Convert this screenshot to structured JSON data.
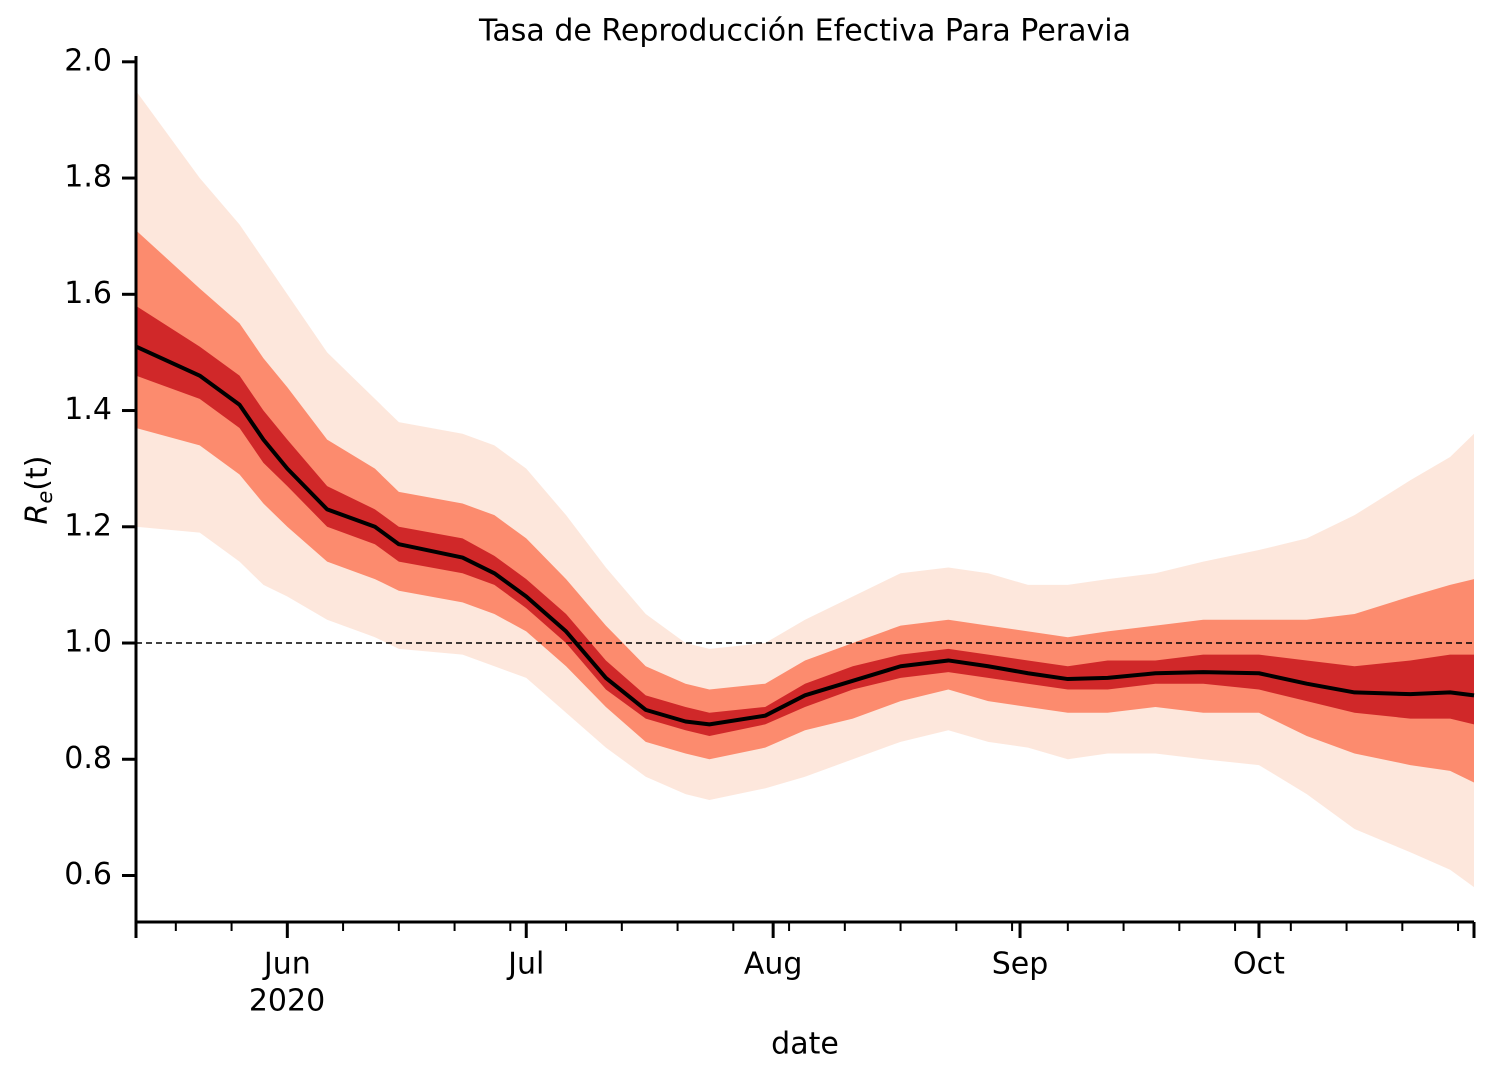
{
  "chart_data": {
    "type": "fan",
    "title": "Tasa de Reproducción Efectiva Para Peravia",
    "xlabel": "date",
    "x_year_label": "2020",
    "ylabel": {
      "main": "R",
      "sub": "e",
      "rest": "(t)"
    },
    "x": [
      134,
      142,
      147,
      150,
      153,
      158,
      164,
      167,
      175,
      179,
      183,
      188,
      193,
      198,
      203,
      206,
      213,
      218,
      224,
      230,
      236,
      241,
      246,
      251,
      256,
      262,
      268,
      275,
      281,
      287,
      294,
      299,
      302
    ],
    "xlim": [
      134,
      302
    ],
    "xticks": [
      {
        "value": 153,
        "label": "Jun"
      },
      {
        "value": 183,
        "label": "Jul"
      },
      {
        "value": 214,
        "label": "Aug"
      },
      {
        "value": 245,
        "label": "Sep"
      },
      {
        "value": 275,
        "label": "Oct"
      }
    ],
    "xticks_minor": [
      139,
      146,
      160,
      167,
      174,
      181,
      188,
      195,
      202,
      209,
      216,
      223,
      230,
      237,
      244,
      251,
      258,
      265,
      272,
      279,
      286,
      293,
      300
    ],
    "ylim": [
      0.52,
      2.01
    ],
    "yticks": [
      0.6,
      0.8,
      {
        "value": 1.0,
        "label": "1.0"
      },
      1.2,
      1.4,
      1.6,
      1.8,
      {
        "value": 2.0,
        "label": "2.0"
      }
    ],
    "hline": 1.0,
    "bands": [
      {
        "color": "#fde3d6",
        "upper": [
          1.95,
          1.8,
          1.72,
          1.66,
          1.6,
          1.5,
          1.42,
          1.38,
          1.36,
          1.34,
          1.3,
          1.22,
          1.13,
          1.05,
          1.0,
          0.99,
          1.0,
          1.04,
          1.08,
          1.12,
          1.13,
          1.12,
          1.1,
          1.1,
          1.11,
          1.12,
          1.14,
          1.16,
          1.18,
          1.22,
          1.28,
          1.32,
          1.36
        ],
        "lower": [
          1.2,
          1.19,
          1.14,
          1.1,
          1.08,
          1.04,
          1.01,
          0.99,
          0.98,
          0.96,
          0.94,
          0.88,
          0.82,
          0.77,
          0.74,
          0.73,
          0.75,
          0.77,
          0.8,
          0.83,
          0.85,
          0.83,
          0.82,
          0.8,
          0.81,
          0.81,
          0.8,
          0.79,
          0.74,
          0.68,
          0.64,
          0.61,
          0.58
        ]
      },
      {
        "color": "#fb7a5a",
        "upper": [
          1.71,
          1.61,
          1.55,
          1.49,
          1.44,
          1.35,
          1.3,
          1.26,
          1.24,
          1.22,
          1.18,
          1.11,
          1.03,
          0.96,
          0.93,
          0.92,
          0.93,
          0.97,
          1.0,
          1.03,
          1.04,
          1.03,
          1.02,
          1.01,
          1.02,
          1.03,
          1.04,
          1.04,
          1.04,
          1.05,
          1.08,
          1.1,
          1.11
        ],
        "lower": [
          1.37,
          1.34,
          1.29,
          1.24,
          1.2,
          1.14,
          1.11,
          1.09,
          1.07,
          1.05,
          1.02,
          0.96,
          0.89,
          0.83,
          0.81,
          0.8,
          0.82,
          0.85,
          0.87,
          0.9,
          0.92,
          0.9,
          0.89,
          0.88,
          0.88,
          0.89,
          0.88,
          0.88,
          0.84,
          0.81,
          0.79,
          0.78,
          0.76
        ]
      },
      {
        "color": "#c8161d",
        "upper": [
          1.58,
          1.51,
          1.46,
          1.4,
          1.35,
          1.27,
          1.23,
          1.2,
          1.18,
          1.15,
          1.11,
          1.05,
          0.97,
          0.91,
          0.89,
          0.88,
          0.89,
          0.93,
          0.96,
          0.98,
          0.99,
          0.98,
          0.97,
          0.96,
          0.97,
          0.97,
          0.98,
          0.98,
          0.97,
          0.96,
          0.97,
          0.98,
          0.98
        ],
        "lower": [
          1.46,
          1.42,
          1.37,
          1.31,
          1.27,
          1.2,
          1.17,
          1.14,
          1.12,
          1.1,
          1.06,
          1.0,
          0.92,
          0.87,
          0.85,
          0.84,
          0.86,
          0.89,
          0.92,
          0.94,
          0.95,
          0.94,
          0.93,
          0.92,
          0.92,
          0.93,
          0.93,
          0.92,
          0.9,
          0.88,
          0.87,
          0.87,
          0.86
        ]
      }
    ],
    "series": [
      {
        "color": "#000000",
        "values": [
          1.51,
          1.46,
          1.41,
          1.35,
          1.3,
          1.23,
          1.2,
          1.17,
          1.147,
          1.12,
          1.08,
          1.02,
          0.94,
          0.885,
          0.865,
          0.86,
          0.875,
          0.91,
          0.935,
          0.96,
          0.97,
          0.96,
          0.948,
          0.938,
          0.94,
          0.948,
          0.95,
          0.948,
          0.93,
          0.915,
          0.912,
          0.915,
          0.91
        ]
      }
    ]
  }
}
